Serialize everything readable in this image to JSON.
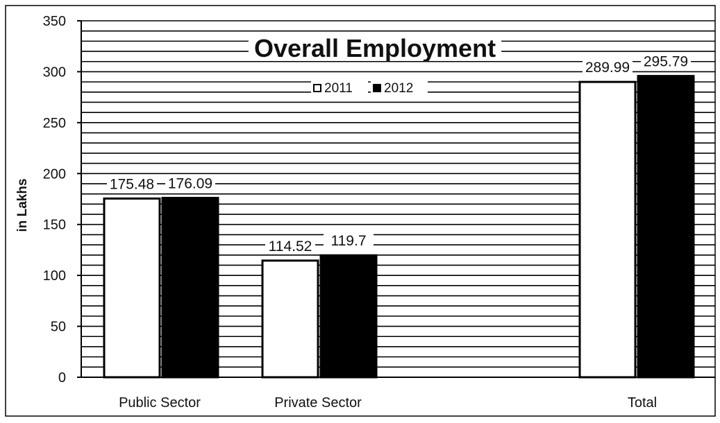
{
  "chart_data": {
    "type": "bar",
    "title": "Overall Employment",
    "ylabel": "in  Lakhs",
    "xlabel": "",
    "categories": [
      "Public Sector",
      "Private Sector",
      "Total"
    ],
    "series": [
      {
        "name": "2011",
        "values": [
          175.48,
          114.52,
          289.99
        ],
        "labels": [
          "175.48",
          "114.52",
          "289.99"
        ],
        "fill": "#ffffff"
      },
      {
        "name": "2012",
        "values": [
          176.09,
          119.7,
          295.79
        ],
        "labels": [
          "176.09",
          "119.7",
          "295.79"
        ],
        "fill": "#000000"
      }
    ],
    "ylim": [
      0,
      350
    ],
    "yticks": [
      0,
      50,
      100,
      150,
      200,
      250,
      300,
      350
    ],
    "grid": true,
    "legend_position": "top-center"
  }
}
